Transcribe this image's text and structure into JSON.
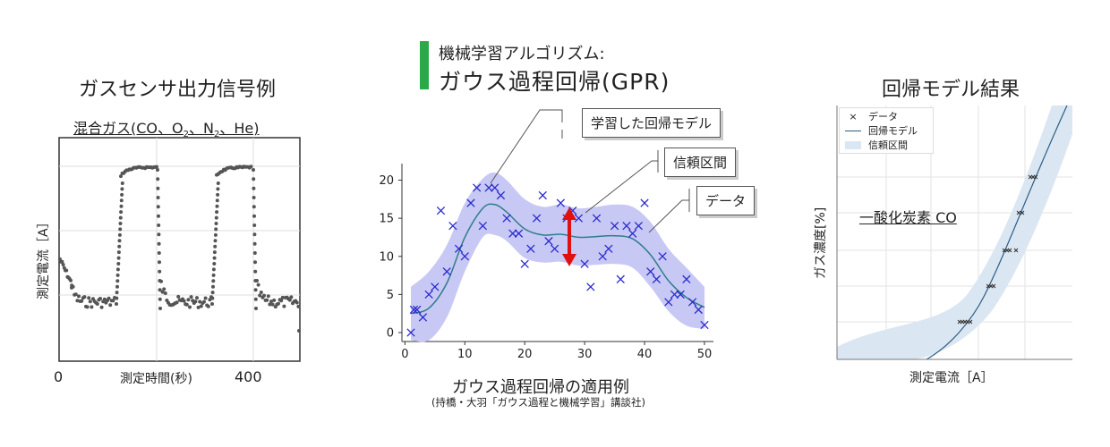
{
  "left_panel": {
    "title": "ガスセンサ出力信号例",
    "inner_label": "混合ガス(CO、O",
    "inner_label_parts": [
      "混合ガス(CO、O",
      "2",
      "、N",
      "2",
      "、He)"
    ],
    "ylabel": "測定電流［A］",
    "xlabel": "測定時間(秒)",
    "xticks": [
      "0",
      "400"
    ]
  },
  "center_panel": {
    "header_small": "機械学習アルゴリズム:",
    "header_big": "ガウス過程回帰(GPR)",
    "callouts": [
      "学習した回帰モデル",
      "信頼区間",
      "データ"
    ],
    "caption": "ガウス過程回帰の適用例",
    "source": "(持橋・大羽「ガウス過程と機械学習」講談社)"
  },
  "right_panel": {
    "title": "回帰モデル結果",
    "legend": [
      "データ",
      "回帰モデル",
      "信頼区間"
    ],
    "inner_label": "一酸化炭素 CO",
    "ylabel": "ガス濃度[%]",
    "xlabel": "測定電流［A］"
  },
  "colors": {
    "dots": "#555555",
    "gpr_band": "#c8c8f5",
    "gpr_line": "#2e7d8a",
    "gpr_marker": "#2a2ad0",
    "arrow": "#e01010",
    "right_band": "#dbe6f3",
    "right_line": "#2c5d85",
    "accent_bar": "#2aa84a"
  },
  "chart_data": [
    {
      "type": "scatter",
      "title": "ガスセンサ出力信号例",
      "xlabel": "測定時間(秒)",
      "ylabel": "測定電流［A］",
      "xticks": [
        0,
        400
      ]
    },
    {
      "type": "scatter",
      "xlabel": "",
      "xlim": [
        0,
        52
      ],
      "ylim": [
        -1,
        22
      ],
      "xticks": [
        0,
        10,
        20,
        30,
        40,
        50
      ],
      "yticks": [
        0,
        5,
        10,
        15,
        20
      ],
      "series": [
        {
          "name": "データ",
          "points": [
            [
              1,
              0
            ],
            [
              1.5,
              3
            ],
            [
              2,
              3
            ],
            [
              3,
              2
            ],
            [
              4,
              5
            ],
            [
              5,
              6
            ],
            [
              6,
              16
            ],
            [
              7,
              8
            ],
            [
              8,
              14
            ],
            [
              9,
              11
            ],
            [
              10,
              10
            ],
            [
              11,
              17
            ],
            [
              12,
              19
            ],
            [
              13,
              14
            ],
            [
              14,
              19
            ],
            [
              15,
              19
            ],
            [
              16,
              18
            ],
            [
              17,
              15
            ],
            [
              18,
              13
            ],
            [
              19,
              13
            ],
            [
              20,
              9
            ],
            [
              21,
              11
            ],
            [
              22,
              15
            ],
            [
              23,
              18
            ],
            [
              24,
              12
            ],
            [
              25,
              11
            ],
            [
              26,
              17
            ],
            [
              27,
              15
            ],
            [
              28,
              16
            ],
            [
              29,
              15
            ],
            [
              30,
              9
            ],
            [
              31,
              6
            ],
            [
              32,
              15
            ],
            [
              33,
              10
            ],
            [
              34,
              11
            ],
            [
              35,
              14
            ],
            [
              36,
              7
            ],
            [
              37,
              14
            ],
            [
              38,
              13
            ],
            [
              39,
              14
            ],
            [
              40,
              17
            ],
            [
              41,
              8
            ],
            [
              42,
              7
            ],
            [
              43,
              10
            ],
            [
              44,
              4
            ],
            [
              45,
              5
            ],
            [
              46,
              5
            ],
            [
              47,
              7
            ],
            [
              48,
              4
            ],
            [
              49,
              3
            ],
            [
              50,
              1
            ]
          ]
        },
        {
          "name": "学習した回帰モデル",
          "x": [
            1,
            4,
            7,
            10,
            13,
            15,
            17,
            20,
            23,
            26,
            29,
            32,
            35,
            38,
            41,
            44,
            47,
            50
          ],
          "values": [
            2.5,
            3.2,
            6.5,
            12.5,
            16.3,
            16.8,
            15.8,
            13.6,
            12.8,
            12.9,
            12.5,
            12.6,
            12.7,
            12.3,
            10.2,
            6.8,
            4.6,
            3.3
          ]
        },
        {
          "name": "信頼区間",
          "x": [
            1,
            4,
            7,
            10,
            13,
            15,
            17,
            20,
            23,
            26,
            29,
            32,
            35,
            38,
            41,
            44,
            47,
            50
          ],
          "upper": [
            6,
            8,
            11.5,
            17,
            20.2,
            21,
            20,
            17.5,
            16.5,
            16.8,
            16.3,
            16.5,
            16.8,
            16.5,
            14.5,
            11,
            8.5,
            6
          ],
          "lower": [
            -1,
            -1,
            2,
            8,
            12.5,
            12.8,
            12,
            9.8,
            9.2,
            9.3,
            8.8,
            8.9,
            9,
            8.5,
            6,
            2.8,
            0.9,
            0.5
          ]
        }
      ]
    },
    {
      "type": "line",
      "title": "回帰モデル結果",
      "xlabel": "測定電流［A］",
      "ylabel": "ガス濃度[%]",
      "legend": [
        "データ",
        "回帰モデル",
        "信頼区間"
      ]
    }
  ]
}
